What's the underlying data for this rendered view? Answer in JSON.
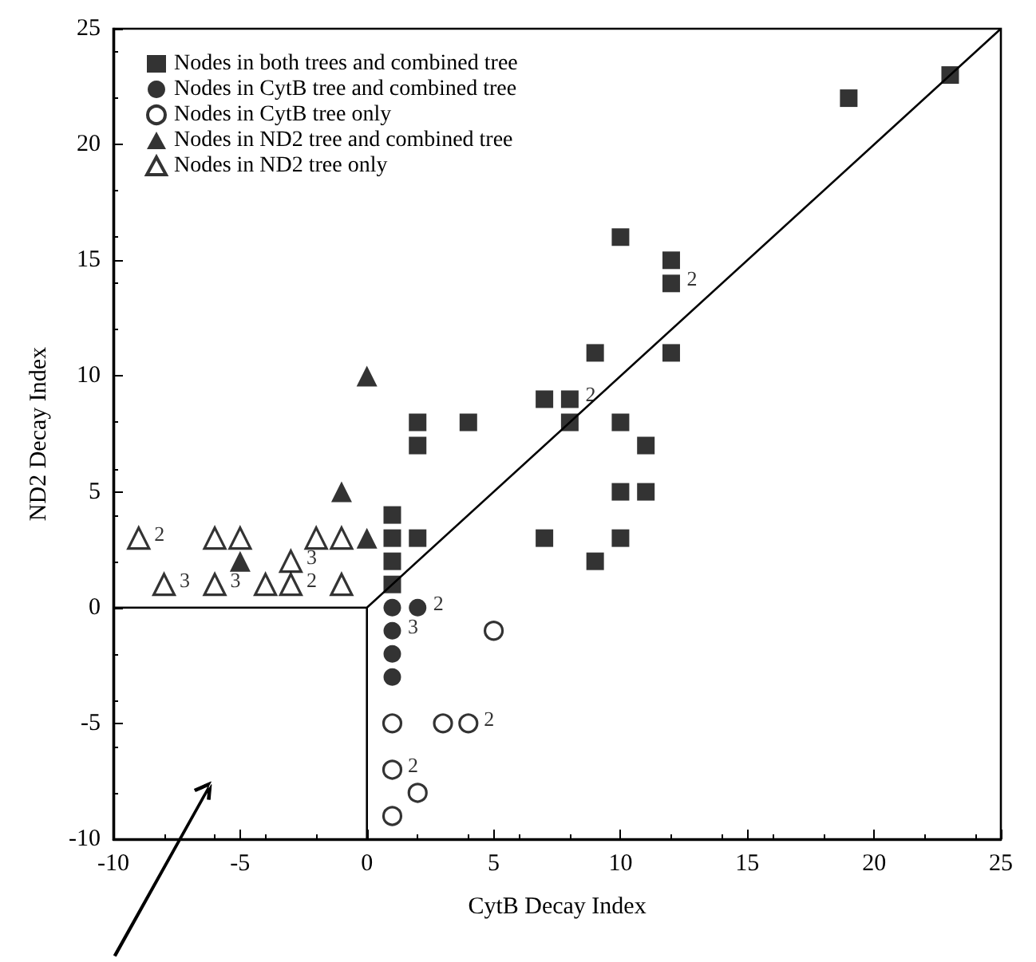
{
  "chart_data": {
    "type": "scatter",
    "xlabel": "CytB Decay Index",
    "ylabel": "ND2 Decay Index",
    "xlim": [
      -10,
      25
    ],
    "ylim": [
      -10,
      25
    ],
    "xticks": [
      -10,
      -5,
      0,
      5,
      10,
      15,
      20,
      25
    ],
    "yticks": [
      -10,
      -5,
      0,
      5,
      10,
      15,
      20,
      25
    ],
    "grid": false,
    "legend": "top left",
    "series": [
      {
        "name": "Nodes in both trees and combined tree",
        "color": "#000000",
        "marker": "square",
        "x": [
          1,
          1,
          1,
          1,
          2,
          2,
          2,
          4,
          7,
          7,
          8,
          8,
          9,
          9,
          10,
          10,
          10,
          10,
          11,
          11,
          12,
          12,
          12,
          19,
          23
        ],
        "values": [
          1,
          2,
          3,
          4,
          3,
          7,
          8,
          8,
          9,
          3,
          8,
          9,
          11,
          2,
          16,
          8,
          5,
          3,
          7,
          5,
          15,
          14,
          11,
          22,
          23
        ]
      },
      {
        "name": "Nodes in CytB tree and combined tree",
        "color": "#000000",
        "marker": "circle",
        "x": [
          1,
          2,
          1,
          1,
          1
        ],
        "values": [
          0,
          0,
          -1,
          -2,
          -3
        ]
      },
      {
        "name": "Nodes in CytB tree only",
        "color": "#ffffff",
        "marker": "circle",
        "x": [
          5,
          1,
          3,
          4,
          1,
          2,
          1
        ],
        "values": [
          -1,
          -5,
          -5,
          -5,
          -7,
          -8,
          -9
        ]
      },
      {
        "name": "Nodes in ND2 tree and combined tree",
        "color": "#000000",
        "marker": "triangle",
        "x": [
          0,
          -1,
          0,
          -5
        ],
        "values": [
          10,
          5,
          3,
          2
        ]
      },
      {
        "name": "Nodes in ND2 tree only",
        "color": "#ffffff",
        "marker": "triangle",
        "x": [
          -9,
          -6,
          -5,
          -2,
          -1,
          -3,
          -8,
          -6,
          -4,
          -3,
          -1
        ],
        "values": [
          3,
          3,
          3,
          3,
          3,
          2,
          1,
          1,
          1,
          1,
          1
        ]
      },
      {
        "type": "line",
        "color": "#000000",
        "marker": "none",
        "x": [
          -10,
          0,
          25
        ],
        "values": [
          0,
          0,
          25
        ]
      },
      {
        "type": "line",
        "color": "#000000",
        "marker": "none",
        "x": [
          0,
          0
        ],
        "values": [
          0,
          -10
        ]
      }
    ],
    "annotations": [
      {
        "text": "2",
        "x": -9,
        "y": 3
      },
      {
        "text": "3",
        "x": -3,
        "y": 2
      },
      {
        "text": "3",
        "x": -8,
        "y": 1
      },
      {
        "text": "3",
        "x": -6,
        "y": 1
      },
      {
        "text": "2",
        "x": -3,
        "y": 1
      },
      {
        "text": "2",
        "x": 2,
        "y": 0
      },
      {
        "text": "3",
        "x": 1,
        "y": -1
      },
      {
        "text": "2",
        "x": 4,
        "y": -5
      },
      {
        "text": "2",
        "x": 1,
        "y": -7
      },
      {
        "text": "2",
        "x": 8,
        "y": 9
      },
      {
        "text": "2",
        "x": 12,
        "y": 14
      }
    ]
  }
}
